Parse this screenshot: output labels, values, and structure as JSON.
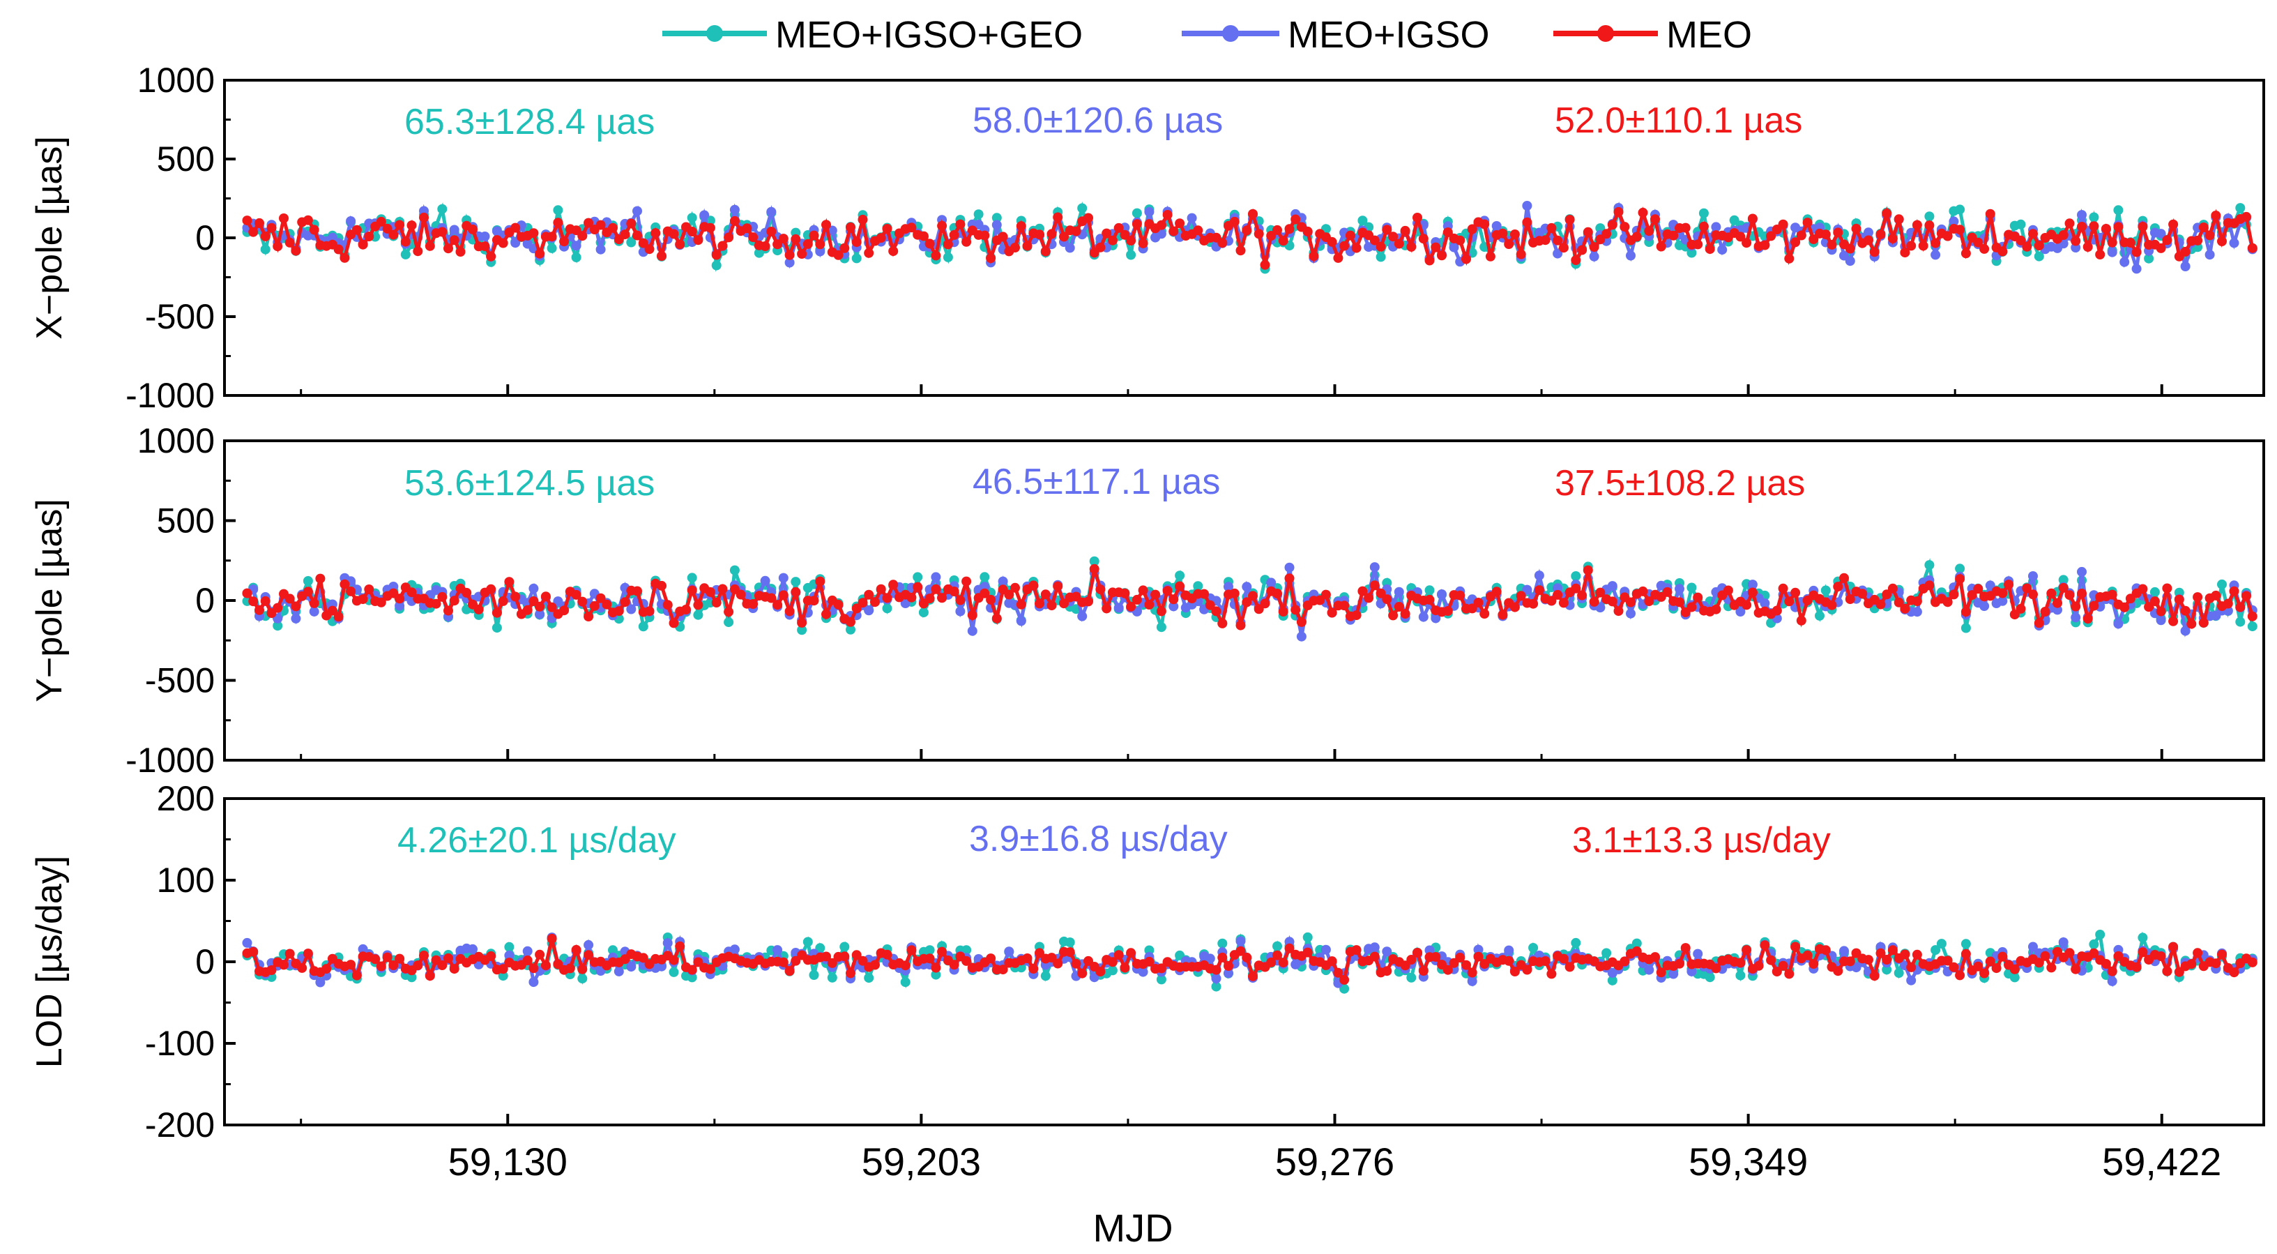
{
  "chart_data": {
    "type": "line",
    "xlabel": "MJD",
    "x_ticks": [
      59130,
      59203,
      59276,
      59349,
      59422
    ],
    "x_tick_labels": [
      "59,130",
      "59,203",
      "59,276",
      "59,349",
      "59,422"
    ],
    "xlim": [
      59080,
      59440
    ],
    "legend": {
      "placement": "top-center",
      "entries": [
        {
          "name": "MEO+IGSO+GEO",
          "color": "#1ec0b8"
        },
        {
          "name": "MEO+IGSO",
          "color": "#6470f0"
        },
        {
          "name": "MEO",
          "color": "#f01818"
        }
      ]
    },
    "panels": [
      {
        "id": "xpole",
        "ylabel": "X−pole [µas]",
        "ylim": [
          -1000,
          1000
        ],
        "y_ticks": [
          1000,
          500,
          0,
          -500,
          -1000
        ],
        "y_tick_labels": [
          "1000",
          "500",
          "0",
          "-500",
          "-1000"
        ],
        "stats": [
          "65.3±128.4 µas",
          "58.0±120.6 µas",
          "52.0±110.1 µas"
        ],
        "series": [
          {
            "name": "MEO+IGSO+GEO",
            "mean": 65.3,
            "std": 128.4
          },
          {
            "name": "MEO+IGSO",
            "mean": 58.0,
            "std": 120.6
          },
          {
            "name": "MEO",
            "mean": 52.0,
            "std": 110.1
          }
        ]
      },
      {
        "id": "ypole",
        "ylabel": "Y−pole [µas]",
        "ylim": [
          -1000,
          1000
        ],
        "y_ticks": [
          1000,
          500,
          0,
          -500,
          -1000
        ],
        "y_tick_labels": [
          "1000",
          "500",
          "0",
          "-500",
          "-1000"
        ],
        "stats": [
          "53.6±124.5 µas",
          "46.5±117.1 µas",
          "37.5±108.2 µas"
        ],
        "series": [
          {
            "name": "MEO+IGSO+GEO",
            "mean": 53.6,
            "std": 124.5
          },
          {
            "name": "MEO+IGSO",
            "mean": 46.5,
            "std": 117.1
          },
          {
            "name": "MEO",
            "mean": 37.5,
            "std": 108.2
          }
        ]
      },
      {
        "id": "lod",
        "ylabel": "LOD [µs/day]",
        "ylim": [
          -200,
          200
        ],
        "y_ticks": [
          200,
          100,
          0,
          -100,
          -200
        ],
        "y_tick_labels": [
          "200",
          "100",
          "0",
          "-100",
          "-200"
        ],
        "stats": [
          "4.26±20.1 µs/day",
          "3.9±16.8 µs/day",
          "3.1±13.3 µs/day"
        ],
        "series": [
          {
            "name": "MEO+IGSO+GEO",
            "mean": 4.26,
            "std": 20.1
          },
          {
            "name": "MEO+IGSO",
            "mean": 3.9,
            "std": 16.8
          },
          {
            "name": "MEO",
            "mean": 3.1,
            "std": 13.3
          }
        ]
      }
    ]
  }
}
